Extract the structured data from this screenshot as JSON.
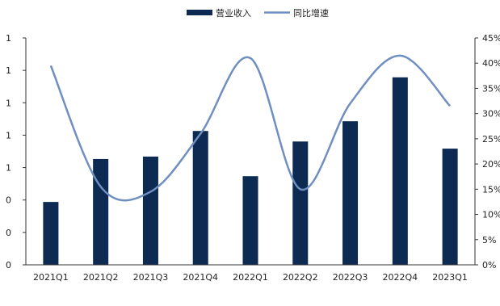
{
  "chart_data": {
    "type": "bar",
    "title": "",
    "categories": [
      "2021Q1",
      "2021Q2",
      "2021Q3",
      "2021Q4",
      "2022Q1",
      "2022Q2",
      "2022Q3",
      "2022Q4",
      "2023Q1"
    ],
    "legend": {
      "position": "top-center",
      "entries": [
        "营业收入",
        "同比增速"
      ]
    },
    "series": [
      {
        "name": "营业收入",
        "type": "bar",
        "axis": "left",
        "color": "#0c2a52",
        "values": [
          0.388,
          0.653,
          0.668,
          0.826,
          0.547,
          0.761,
          0.886,
          1.157,
          0.717
        ]
      },
      {
        "name": "同比增速",
        "type": "line",
        "axis": "right",
        "color": "#6f8fc0",
        "smooth": true,
        "values": [
          39.5,
          15.5,
          14.5,
          26.0,
          41.0,
          15.0,
          32.0,
          41.5,
          31.5
        ]
      }
    ],
    "y_left": {
      "range": [
        0,
        1.4
      ],
      "ticks": [
        0,
        0.2,
        0.4,
        0.6,
        0.8,
        1.0,
        1.2,
        1.4
      ],
      "tick_labels": [
        "0",
        "0",
        "0",
        "1",
        "1",
        "1",
        "1",
        "1"
      ]
    },
    "y_right": {
      "range": [
        0,
        45
      ],
      "ticks": [
        0,
        5,
        10,
        15,
        20,
        25,
        30,
        35,
        40,
        45
      ],
      "tick_labels": [
        "0%",
        "5%",
        "10%",
        "15%",
        "20%",
        "25%",
        "30%",
        "35%",
        "40%",
        "45%"
      ]
    },
    "grid": false
  }
}
